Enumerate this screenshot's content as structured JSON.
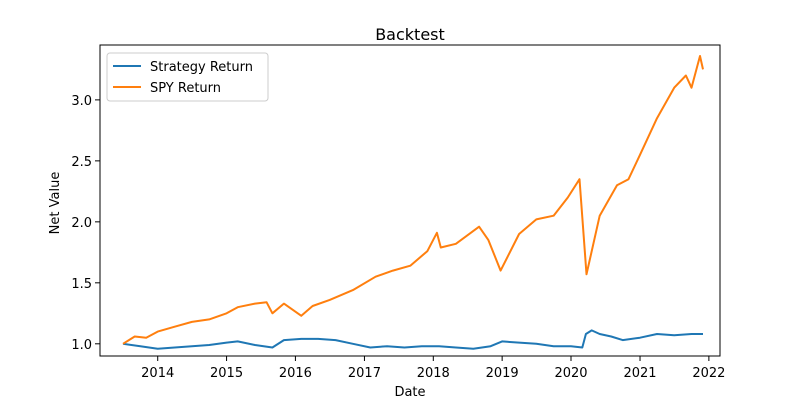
{
  "chart_data": {
    "type": "line",
    "title": "Backtest",
    "xlabel": "Date",
    "ylabel": "Net Value",
    "xlim": [
      "2013-03-01",
      "2022-03-01"
    ],
    "ylim": [
      0.9,
      3.45
    ],
    "x_ticks": [
      "2014",
      "2015",
      "2016",
      "2017",
      "2018",
      "2019",
      "2020",
      "2021",
      "2022"
    ],
    "y_ticks": [
      "1.0",
      "1.5",
      "2.0",
      "2.5",
      "3.0"
    ],
    "grid": false,
    "legend_position": "top-left",
    "series": [
      {
        "name": "Strategy Return",
        "color": "#1f77b4",
        "points": [
          [
            "2013-07-01",
            1.0
          ],
          [
            "2013-10-01",
            0.98
          ],
          [
            "2014-01-01",
            0.96
          ],
          [
            "2014-04-01",
            0.97
          ],
          [
            "2014-07-01",
            0.98
          ],
          [
            "2014-10-01",
            0.99
          ],
          [
            "2015-01-01",
            1.01
          ],
          [
            "2015-03-01",
            1.02
          ],
          [
            "2015-06-01",
            0.99
          ],
          [
            "2015-09-01",
            0.97
          ],
          [
            "2015-11-01",
            1.03
          ],
          [
            "2016-02-01",
            1.04
          ],
          [
            "2016-05-01",
            1.04
          ],
          [
            "2016-08-01",
            1.03
          ],
          [
            "2016-11-01",
            1.0
          ],
          [
            "2017-02-01",
            0.97
          ],
          [
            "2017-05-01",
            0.98
          ],
          [
            "2017-08-01",
            0.97
          ],
          [
            "2017-11-01",
            0.98
          ],
          [
            "2018-02-01",
            0.98
          ],
          [
            "2018-05-01",
            0.97
          ],
          [
            "2018-08-01",
            0.96
          ],
          [
            "2018-11-01",
            0.98
          ],
          [
            "2019-01-01",
            1.02
          ],
          [
            "2019-04-01",
            1.01
          ],
          [
            "2019-07-01",
            1.0
          ],
          [
            "2019-10-01",
            0.98
          ],
          [
            "2020-01-01",
            0.98
          ],
          [
            "2020-03-01",
            0.97
          ],
          [
            "2020-03-20",
            1.08
          ],
          [
            "2020-04-20",
            1.11
          ],
          [
            "2020-06-01",
            1.08
          ],
          [
            "2020-08-01",
            1.06
          ],
          [
            "2020-10-01",
            1.03
          ],
          [
            "2021-01-01",
            1.05
          ],
          [
            "2021-04-01",
            1.08
          ],
          [
            "2021-07-01",
            1.07
          ],
          [
            "2021-10-01",
            1.08
          ],
          [
            "2021-12-01",
            1.08
          ]
        ]
      },
      {
        "name": "SPY Return",
        "color": "#ff7f0e",
        "points": [
          [
            "2013-07-01",
            1.0
          ],
          [
            "2013-09-01",
            1.06
          ],
          [
            "2013-11-01",
            1.05
          ],
          [
            "2014-01-01",
            1.1
          ],
          [
            "2014-04-01",
            1.14
          ],
          [
            "2014-07-01",
            1.18
          ],
          [
            "2014-10-01",
            1.2
          ],
          [
            "2015-01-01",
            1.25
          ],
          [
            "2015-03-01",
            1.3
          ],
          [
            "2015-06-01",
            1.33
          ],
          [
            "2015-08-01",
            1.34
          ],
          [
            "2015-09-01",
            1.25
          ],
          [
            "2015-11-01",
            1.33
          ],
          [
            "2016-02-01",
            1.23
          ],
          [
            "2016-04-01",
            1.31
          ],
          [
            "2016-07-01",
            1.36
          ],
          [
            "2016-11-01",
            1.44
          ],
          [
            "2017-03-01",
            1.55
          ],
          [
            "2017-06-01",
            1.6
          ],
          [
            "2017-09-01",
            1.64
          ],
          [
            "2017-12-01",
            1.76
          ],
          [
            "2018-01-20",
            1.91
          ],
          [
            "2018-02-10",
            1.79
          ],
          [
            "2018-05-01",
            1.82
          ],
          [
            "2018-09-01",
            1.96
          ],
          [
            "2018-10-20",
            1.85
          ],
          [
            "2018-12-24",
            1.6
          ],
          [
            "2019-04-01",
            1.9
          ],
          [
            "2019-07-01",
            2.02
          ],
          [
            "2019-10-01",
            2.05
          ],
          [
            "2019-12-15",
            2.2
          ],
          [
            "2020-02-15",
            2.35
          ],
          [
            "2020-03-23",
            1.57
          ],
          [
            "2020-06-01",
            2.05
          ],
          [
            "2020-09-01",
            2.3
          ],
          [
            "2020-11-01",
            2.35
          ],
          [
            "2021-01-01",
            2.55
          ],
          [
            "2021-04-01",
            2.85
          ],
          [
            "2021-07-01",
            3.1
          ],
          [
            "2021-09-01",
            3.2
          ],
          [
            "2021-10-01",
            3.1
          ],
          [
            "2021-11-15",
            3.36
          ],
          [
            "2021-12-01",
            3.25
          ]
        ]
      }
    ]
  }
}
